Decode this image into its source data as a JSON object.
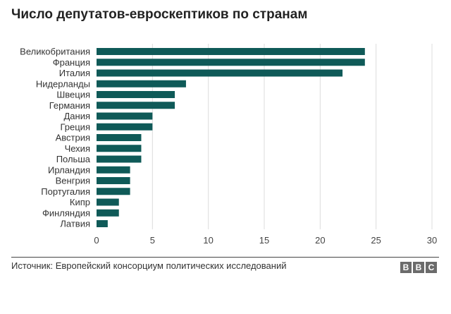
{
  "title": "Число депутатов-евроскептиков по странам",
  "source": "Источник: Европейский консорциум политических исследований",
  "logo": [
    "B",
    "B",
    "C"
  ],
  "chart_data": {
    "type": "bar",
    "orientation": "horizontal",
    "categories": [
      "Великобритания",
      "Франция",
      "Италия",
      "Нидерланды",
      "Швеция",
      "Германия",
      "Дания",
      "Греция",
      "Австрия",
      "Чехия",
      "Польша",
      "Ирландия",
      "Венгрия",
      "Португалия",
      "Кипр",
      "Финляндия",
      "Латвия"
    ],
    "values": [
      24,
      24,
      22,
      8,
      7,
      7,
      5,
      5,
      4,
      4,
      4,
      3,
      3,
      3,
      2,
      2,
      1
    ],
    "xlim": [
      0,
      30
    ],
    "xticks": [
      0,
      5,
      10,
      15,
      20,
      25,
      30
    ],
    "bar_color": "#0f5a58",
    "grid": true
  }
}
